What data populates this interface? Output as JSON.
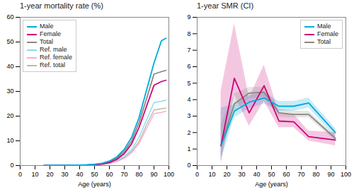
{
  "chart_data": [
    {
      "type": "line",
      "title": "1-year mortality rate (%)",
      "xlabel": "Age (years)",
      "x": [
        16,
        20,
        25,
        30,
        35,
        40,
        45,
        50,
        55,
        60,
        65,
        70,
        75,
        80,
        85,
        90,
        95,
        98
      ],
      "series": [
        {
          "name": "Male",
          "color": "#00AADD",
          "values": [
            0.05,
            0.08,
            0.1,
            0.12,
            0.15,
            0.2,
            0.3,
            0.5,
            0.9,
            1.8,
            3.5,
            6.5,
            11.5,
            19.5,
            30.5,
            41.5,
            50.5,
            51.5
          ]
        },
        {
          "name": "Female",
          "color": "#CC0077",
          "values": [
            0.03,
            0.05,
            0.06,
            0.07,
            0.09,
            0.12,
            0.18,
            0.3,
            0.6,
            1.2,
            2.5,
            4.8,
            8.8,
            15.5,
            24.0,
            32.5,
            34.0,
            34.5
          ]
        },
        {
          "name": "Total",
          "color": "#888880",
          "values": [
            0.04,
            0.06,
            0.08,
            0.09,
            0.12,
            0.16,
            0.24,
            0.4,
            0.7,
            1.5,
            3.0,
            5.6,
            10.0,
            17.5,
            27.0,
            37.0,
            38.0,
            38.5
          ]
        },
        {
          "name": "Ref. male",
          "color": "#88DDEE",
          "values": [
            0.02,
            0.04,
            0.06,
            0.08,
            0.1,
            0.14,
            0.2,
            0.33,
            0.6,
            1.1,
            2.1,
            3.7,
            6.5,
            11.5,
            18.5,
            25.5,
            26.0,
            26.5
          ]
        },
        {
          "name": "Ref. female",
          "color": "#FFAACC",
          "values": [
            0.015,
            0.025,
            0.035,
            0.045,
            0.06,
            0.09,
            0.14,
            0.22,
            0.4,
            0.8,
            1.6,
            2.9,
            5.2,
            9.0,
            15.0,
            21.0,
            21.5,
            22.0
          ]
        },
        {
          "name": "Ref. total",
          "color": "#BBBBAA",
          "values": [
            0.017,
            0.032,
            0.047,
            0.062,
            0.08,
            0.11,
            0.17,
            0.27,
            0.5,
            0.9,
            1.8,
            3.3,
            5.8,
            9.8,
            16.5,
            22.5,
            23.0,
            23.2
          ]
        }
      ],
      "xlim": [
        0,
        100
      ],
      "xticks": [
        0,
        10,
        20,
        30,
        40,
        50,
        60,
        70,
        80,
        90,
        100
      ],
      "ylim": [
        0,
        60
      ],
      "yticks": [
        0,
        10,
        20,
        30,
        40,
        50,
        60
      ],
      "legend": "upper left"
    },
    {
      "type": "line",
      "title": "1-year SMR (CI)",
      "xlabel": "Age (years)",
      "x": [
        16,
        25,
        35,
        45,
        55,
        65,
        75,
        93
      ],
      "series": [
        {
          "name": "Male",
          "color": "#00AADD",
          "values": [
            1.2,
            3.3,
            3.85,
            4.1,
            3.6,
            3.6,
            3.8,
            2.0
          ],
          "lower": [
            0.3,
            2.9,
            3.45,
            3.75,
            3.3,
            3.3,
            3.5,
            1.75
          ],
          "upper": [
            3.5,
            3.7,
            4.25,
            4.45,
            3.9,
            3.9,
            4.1,
            2.25
          ]
        },
        {
          "name": "Female",
          "color": "#CC0077",
          "values": [
            1.2,
            5.3,
            3.2,
            4.85,
            2.7,
            2.65,
            1.75,
            1.55
          ],
          "lower": [
            0.1,
            4.3,
            2.4,
            3.9,
            2.3,
            2.3,
            1.5,
            1.2
          ],
          "upper": [
            4.5,
            8.6,
            4.1,
            6.1,
            3.2,
            3.1,
            2.1,
            2.0
          ]
        },
        {
          "name": "Total",
          "color": "#888880",
          "values": [
            1.2,
            3.75,
            4.4,
            4.45,
            3.2,
            3.1,
            3.1,
            1.65
          ],
          "lower": [
            0.5,
            3.25,
            4.05,
            4.15,
            2.95,
            2.9,
            2.9,
            1.5
          ],
          "upper": [
            2.5,
            4.35,
            4.75,
            4.75,
            3.45,
            3.3,
            3.3,
            1.8
          ]
        }
      ],
      "xlim": [
        0,
        100
      ],
      "xticks": [
        0,
        10,
        20,
        30,
        40,
        50,
        60,
        70,
        80,
        90,
        100
      ],
      "ylim": [
        0,
        9
      ],
      "yticks": [
        0,
        1,
        2,
        3,
        4,
        5,
        6,
        7,
        8,
        9
      ],
      "legend": "upper right"
    }
  ]
}
